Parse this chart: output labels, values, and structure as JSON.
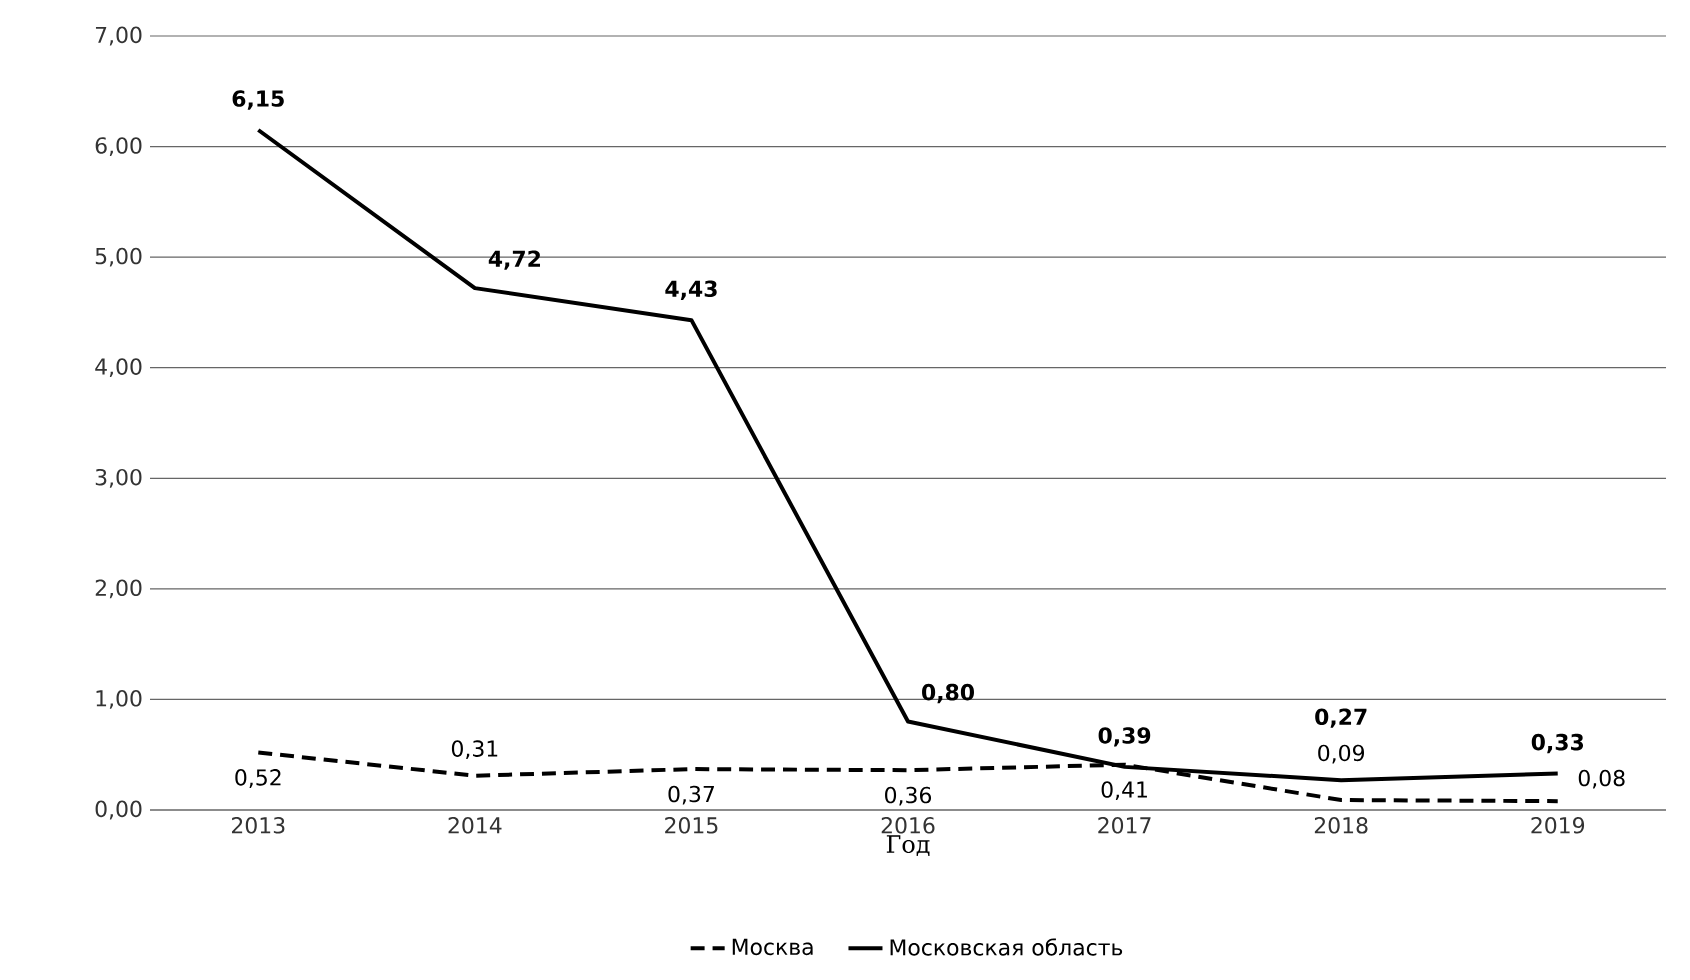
{
  "chart_data": {
    "type": "line",
    "xlabel": "Год",
    "categories": [
      "2013",
      "2014",
      "2015",
      "2016",
      "2017",
      "2018",
      "2019"
    ],
    "series": [
      {
        "name": "Москва",
        "color": "#000000",
        "line_style": "dashed",
        "values": [
          0.52,
          0.31,
          0.37,
          0.36,
          0.41,
          0.09,
          0.08
        ],
        "value_labels": [
          "0,52",
          "0,31",
          "0,37",
          "0,36",
          "0,41",
          "0,09",
          "0,08"
        ]
      },
      {
        "name": "Московская область",
        "color": "#000000",
        "line_style": "solid",
        "values": [
          6.15,
          4.72,
          4.43,
          0.8,
          0.39,
          0.27,
          0.33
        ],
        "value_labels": [
          "6,15",
          "4,72",
          "4,43",
          "0,80",
          "0,39",
          "0,27",
          "0,33"
        ]
      }
    ],
    "ylim": [
      0,
      7
    ],
    "yticks": [
      {
        "value": 0,
        "label": "0,00"
      },
      {
        "value": 1,
        "label": "1,00"
      },
      {
        "value": 2,
        "label": "2,00"
      },
      {
        "value": 3,
        "label": "3,00"
      },
      {
        "value": 4,
        "label": "4,00"
      },
      {
        "value": 5,
        "label": "5,00"
      },
      {
        "value": 6,
        "label": "6,00"
      },
      {
        "value": 7,
        "label": "7,00"
      }
    ],
    "grid": "y",
    "legend": "bottom",
    "marker": "none"
  }
}
